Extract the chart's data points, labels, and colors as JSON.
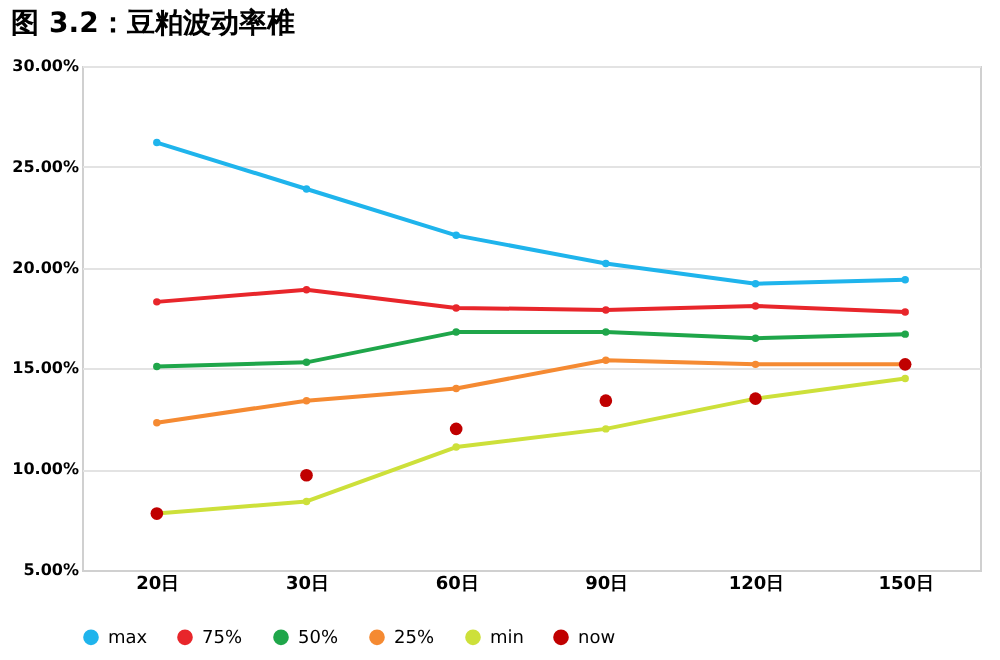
{
  "chart_data": {
    "type": "line",
    "title": "图 3.2：豆粕波动率椎",
    "categories": [
      "20日",
      "30日",
      "60日",
      "90日",
      "120日",
      "150日"
    ],
    "series": [
      {
        "name": "max",
        "color": "#1fb4ec",
        "values": [
          26.2,
          23.9,
          21.6,
          20.2,
          19.2,
          19.4
        ]
      },
      {
        "name": "75%",
        "color": "#e8262b",
        "values": [
          18.3,
          18.9,
          18.0,
          17.9,
          18.1,
          17.8
        ]
      },
      {
        "name": "50%",
        "color": "#1fa64a",
        "values": [
          15.1,
          15.3,
          16.8,
          16.8,
          16.5,
          16.7
        ]
      },
      {
        "name": "25%",
        "color": "#f58a32",
        "values": [
          12.3,
          13.4,
          14.0,
          15.4,
          15.2,
          15.2
        ]
      },
      {
        "name": "min",
        "color": "#cde03a",
        "values": [
          7.8,
          8.4,
          11.1,
          12.0,
          13.5,
          14.5
        ]
      },
      {
        "name": "now",
        "color": "#c00000",
        "type": "scatter",
        "values": [
          7.8,
          9.7,
          12.0,
          13.4,
          13.5,
          15.2
        ]
      }
    ],
    "ylim": [
      5,
      30
    ],
    "yticks": [
      {
        "value": 5,
        "label": "5.00%"
      },
      {
        "value": 10,
        "label": "10.00%"
      },
      {
        "value": 15,
        "label": "15.00%"
      },
      {
        "value": 20,
        "label": "20.00%"
      },
      {
        "value": 25,
        "label": "25.00%"
      },
      {
        "value": 30,
        "label": "30.00%"
      }
    ],
    "grid": "y",
    "legend": "bottom",
    "marker": "circle",
    "line_style": "solid"
  }
}
